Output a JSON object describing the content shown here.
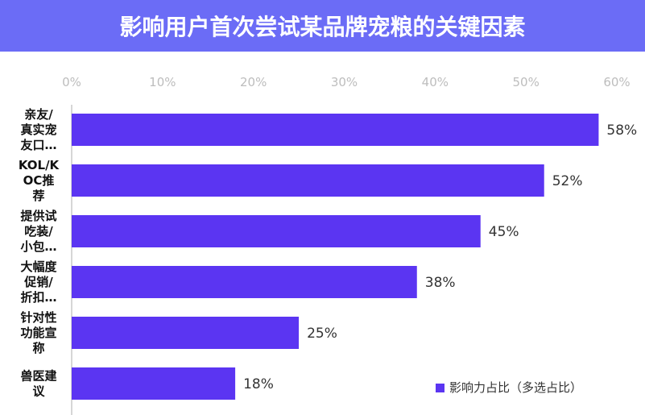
{
  "header": {
    "title": "影响用户首次尝试某品牌宠粮的关键因素"
  },
  "colors": {
    "header_bg": "#6b6cf6",
    "bar": "#5b35f2",
    "axis_line": "#c8c8c8"
  },
  "chart_data": {
    "type": "bar",
    "orientation": "horizontal",
    "title": "影响用户首次尝试某品牌宠粮的关键因素",
    "xlabel": "",
    "ylabel": "",
    "xlim": [
      0,
      60
    ],
    "xticks": [
      "0%",
      "10%",
      "20%",
      "30%",
      "40%",
      "50%",
      "60%"
    ],
    "x_axis_position": "top",
    "grid": false,
    "legend": "bottom-right",
    "categories": [
      [
        "亲友/",
        "真实宠",
        "友口…"
      ],
      [
        "KOL/K",
        "OC推",
        "荐"
      ],
      [
        "提供试",
        "吃装/",
        "小包…"
      ],
      [
        "大幅度",
        "促销/",
        "折扣…"
      ],
      [
        "针对性",
        "功能宣",
        "称"
      ],
      [
        "兽医建",
        "议"
      ]
    ],
    "series": [
      {
        "name": "影响力占比（多选占比）",
        "values": [
          58,
          52,
          45,
          38,
          25,
          18
        ],
        "labels": [
          "58%",
          "52%",
          "45%",
          "38%",
          "25%",
          "18%"
        ]
      }
    ]
  }
}
